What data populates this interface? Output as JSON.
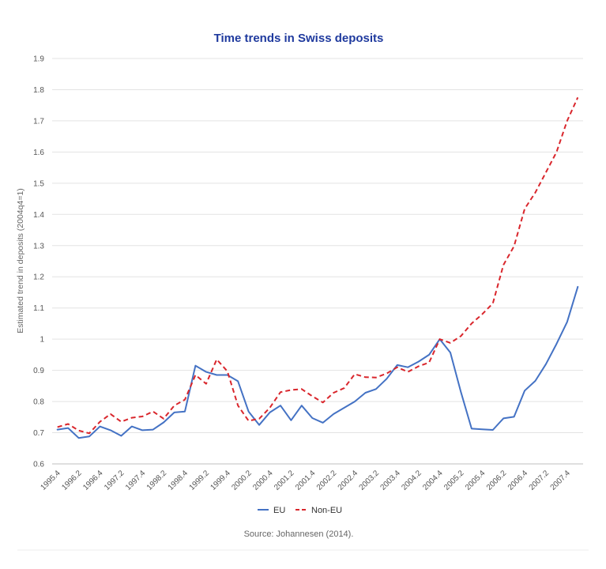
{
  "chart_data": {
    "type": "line",
    "title": "Time trends in Swiss deposits",
    "ylabel": "Estimated trend in deposits (2004q4=1)",
    "xlabel": "",
    "ylim": [
      0.6,
      1.9
    ],
    "yticks": [
      "0.6",
      "0.7",
      "0.8",
      "0.9",
      "1",
      "1.1",
      "1.2",
      "1.3",
      "1.4",
      "1.5",
      "1.6",
      "1.7",
      "1.8",
      "1.9"
    ],
    "ytick_values": [
      0.6,
      0.7,
      0.8,
      0.9,
      1.0,
      1.1,
      1.2,
      1.3,
      1.4,
      1.5,
      1.6,
      1.7,
      1.8,
      1.9
    ],
    "x": [
      "1995.4",
      "1996.1",
      "1996.2",
      "1996.3",
      "1996.4",
      "1997.1",
      "1997.2",
      "1997.3",
      "1997.4",
      "1998.1",
      "1998.2",
      "1998.3",
      "1998.4",
      "1999.1",
      "1999.2",
      "1999.3",
      "1999.4",
      "2000.1",
      "2000.2",
      "2000.3",
      "2000.4",
      "2001.1",
      "2001.2",
      "2001.3",
      "2001.4",
      "2002.1",
      "2002.2",
      "2002.3",
      "2002.4",
      "2003.1",
      "2003.2",
      "2003.3",
      "2003.4",
      "2004.1",
      "2004.2",
      "2004.3",
      "2004.4",
      "2005.1",
      "2005.2",
      "2005.3",
      "2005.4",
      "2006.1",
      "2006.2",
      "2006.3",
      "2006.4",
      "2007.1",
      "2007.2",
      "2007.3",
      "2007.4",
      "2008.1"
    ],
    "x_tick_labels": [
      "1995.4",
      "1996.2",
      "1996.4",
      "1997.2",
      "1997.4",
      "1998.2",
      "1998.4",
      "1999.2",
      "1999.4",
      "2000.2",
      "2000.4",
      "2001.2",
      "2001.4",
      "2002.2",
      "2002.4",
      "2003.2",
      "2003.4",
      "2004.2",
      "2004.4",
      "2005.2",
      "2005.4",
      "2006.2",
      "2006.4",
      "2007.2",
      "2007.4"
    ],
    "series": [
      {
        "name": "EU",
        "color": "#4472c4",
        "dash": "solid",
        "values": [
          0.71,
          0.715,
          0.683,
          0.688,
          0.72,
          0.708,
          0.69,
          0.72,
          0.708,
          0.71,
          0.733,
          0.765,
          0.768,
          0.915,
          0.895,
          0.885,
          0.885,
          0.865,
          0.768,
          0.725,
          0.765,
          0.787,
          0.74,
          0.787,
          0.747,
          0.732,
          0.76,
          0.78,
          0.8,
          0.828,
          0.84,
          0.873,
          0.917,
          0.91,
          0.928,
          0.95,
          1.0,
          0.957,
          0.83,
          0.713,
          0.711,
          0.709,
          0.746,
          0.751,
          0.835,
          0.866,
          0.92,
          0.985,
          1.055,
          1.168
        ]
      },
      {
        "name": "Non-EU",
        "color": "#d9262c",
        "dash": "dashed",
        "values": [
          0.718,
          0.728,
          0.707,
          0.698,
          0.735,
          0.76,
          0.735,
          0.748,
          0.752,
          0.768,
          0.745,
          0.787,
          0.806,
          0.885,
          0.857,
          0.935,
          0.897,
          0.787,
          0.738,
          0.745,
          0.78,
          0.83,
          0.837,
          0.84,
          0.817,
          0.797,
          0.828,
          0.843,
          0.888,
          0.878,
          0.877,
          0.89,
          0.91,
          0.895,
          0.913,
          0.925,
          1.0,
          0.988,
          1.01,
          1.05,
          1.08,
          1.115,
          1.238,
          1.298,
          1.418,
          1.47,
          1.535,
          1.6,
          1.7,
          1.775
        ]
      }
    ],
    "legend": {
      "position": "bottom",
      "entries": [
        "EU",
        "Non-EU"
      ]
    },
    "grid": true,
    "source": "Source: Johannesen (2014)."
  }
}
